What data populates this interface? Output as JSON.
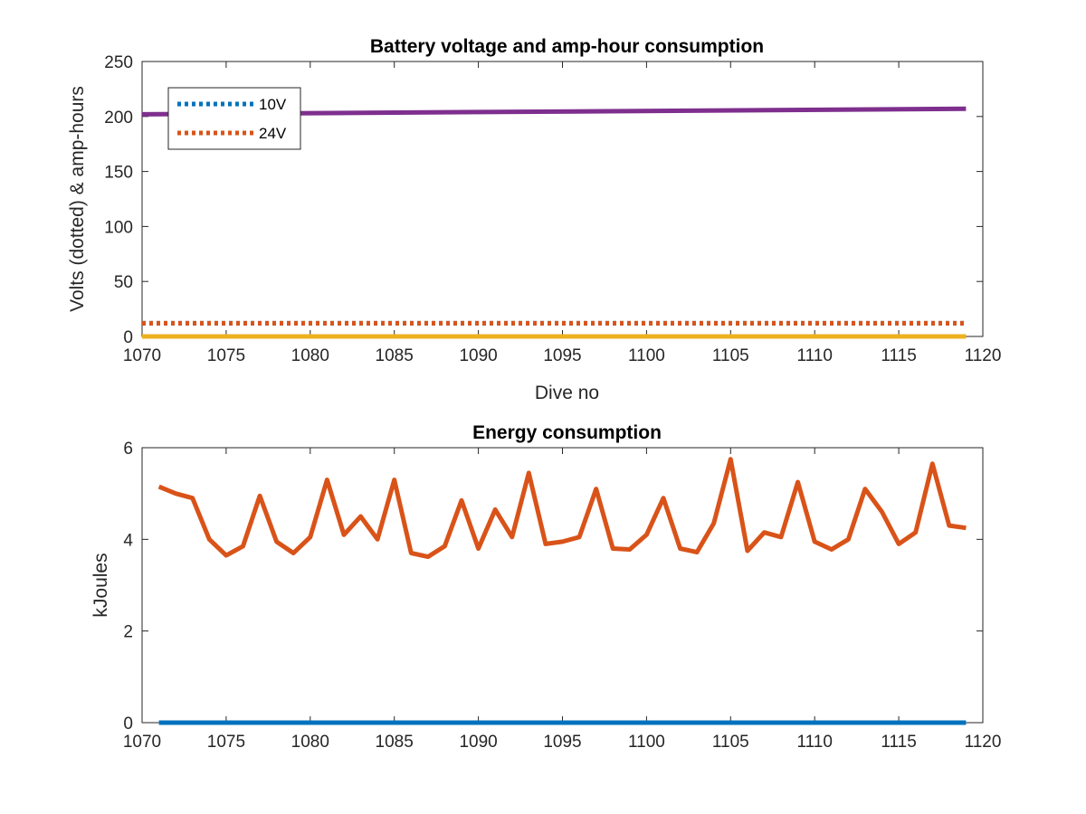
{
  "colors": {
    "blue": "#0072BD",
    "orange": "#D95319",
    "yellow": "#EDB120",
    "purple": "#7E2F8E",
    "axis": "#262626"
  },
  "chart_data": [
    {
      "type": "line",
      "title": "Battery voltage and amp-hour consumption",
      "xlabel": "Dive no",
      "ylabel": "Volts (dotted) & amp-hours",
      "xlim": [
        1070,
        1120
      ],
      "ylim": [
        0,
        250
      ],
      "xticks": [
        "1070",
        "1075",
        "1080",
        "1085",
        "1090",
        "1095",
        "1100",
        "1105",
        "1110",
        "1115",
        "1120"
      ],
      "yticks": [
        "0",
        "50",
        "100",
        "150",
        "200",
        "250"
      ],
      "legend": {
        "position": "top-left",
        "entries": [
          "10V",
          "24V"
        ]
      },
      "series": [
        {
          "name": "10V",
          "style": "dotted",
          "color": "blue",
          "x": [
            1070,
            1119
          ],
          "y": [
            12,
            12
          ]
        },
        {
          "name": "24V",
          "style": "dotted",
          "color": "orange",
          "x": [
            1070,
            1119
          ],
          "y": [
            12,
            12
          ]
        },
        {
          "style": "solid",
          "color": "yellow",
          "x": [
            1070,
            1119
          ],
          "y": [
            0,
            0
          ]
        },
        {
          "style": "solid",
          "color": "purple",
          "x": [
            1070,
            1119
          ],
          "y": [
            202,
            207
          ]
        }
      ]
    },
    {
      "type": "line",
      "title": "Energy consumption",
      "xlabel": "",
      "ylabel": "kJoules",
      "xlim": [
        1070,
        1120
      ],
      "ylim": [
        0,
        6
      ],
      "xticks": [
        "1070",
        "1075",
        "1080",
        "1085",
        "1090",
        "1095",
        "1100",
        "1105",
        "1110",
        "1115",
        "1120"
      ],
      "yticks": [
        "0",
        "2",
        "4",
        "6"
      ],
      "series": [
        {
          "style": "solid",
          "color": "blue",
          "x": [
            1071,
            1119
          ],
          "y": [
            0,
            0
          ]
        },
        {
          "style": "solid",
          "color": "orange",
          "x": [
            1071,
            1072,
            1073,
            1074,
            1075,
            1076,
            1077,
            1078,
            1079,
            1080,
            1081,
            1082,
            1083,
            1084,
            1085,
            1086,
            1087,
            1088,
            1089,
            1090,
            1091,
            1092,
            1093,
            1094,
            1095,
            1096,
            1097,
            1098,
            1099,
            1100,
            1101,
            1102,
            1103,
            1104,
            1105,
            1106,
            1107,
            1108,
            1109,
            1110,
            1111,
            1112,
            1113,
            1114,
            1115,
            1116,
            1117,
            1118,
            1119
          ],
          "y": [
            5.15,
            5.0,
            4.9,
            4.0,
            3.65,
            3.85,
            4.95,
            3.95,
            3.7,
            4.05,
            5.3,
            4.1,
            4.5,
            4.0,
            5.3,
            3.7,
            3.62,
            3.85,
            4.85,
            3.8,
            4.65,
            4.05,
            5.45,
            3.9,
            3.95,
            4.05,
            5.1,
            3.8,
            3.78,
            4.1,
            4.9,
            3.8,
            3.72,
            4.35,
            5.75,
            3.75,
            4.15,
            4.05,
            5.25,
            3.95,
            3.78,
            4.0,
            5.1,
            4.6,
            3.9,
            4.15,
            5.65,
            4.3,
            4.25
          ]
        }
      ]
    }
  ]
}
